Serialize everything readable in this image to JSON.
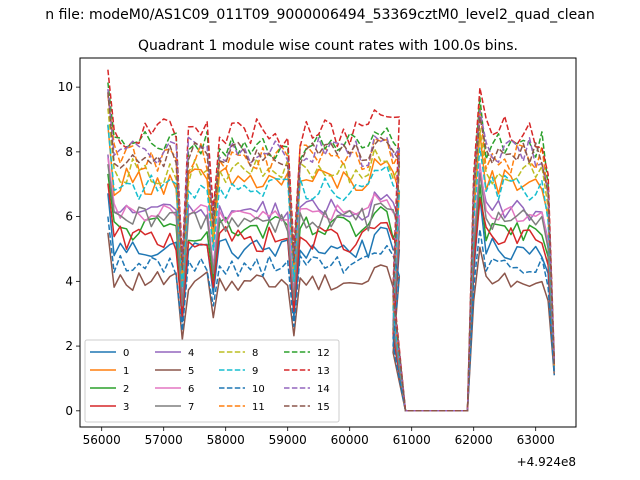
{
  "figure": {
    "suptitle": "n file: modeM0/AS1C09_011T09_9000006494_53369cztM0_level2_quad_clean",
    "offset_label": "+4.924e8"
  },
  "chart_data": {
    "type": "line",
    "title": "Quadrant 1 module wise count rates with 100.0s bins.",
    "xlabel": "",
    "ylabel": "",
    "x_offset": 492400000,
    "xlim": [
      55650,
      63650
    ],
    "ylim": [
      -0.5,
      10.9
    ],
    "xticks": [
      56000,
      57000,
      58000,
      59000,
      60000,
      61000,
      62000,
      63000
    ],
    "xtick_labels": [
      "56000",
      "57000",
      "58000",
      "59000",
      "60000",
      "61000",
      "62000",
      "63000"
    ],
    "yticks": [
      0,
      2,
      4,
      6,
      8,
      10
    ],
    "ytick_labels": [
      "0",
      "2",
      "4",
      "6",
      "8",
      "10"
    ],
    "grid": false,
    "legend_position": "lower-left",
    "legend_columns": 4,
    "segments": [
      {
        "start": 56100,
        "end": 60800,
        "step": 100
      },
      {
        "start": 60900,
        "end": 61900,
        "step": 100
      },
      {
        "start": 62000,
        "end": 63300,
        "step": 100
      }
    ],
    "series": [
      {
        "name": "0",
        "color": "#1f77b4",
        "dash": "solid",
        "base": 5.0,
        "amp": 0.35,
        "sector": 6,
        "tail": 1.2
      },
      {
        "name": "1",
        "color": "#ff7f0e",
        "dash": "solid",
        "base": 7.1,
        "amp": 0.45,
        "sector": 6,
        "tail": 1.4
      },
      {
        "name": "2",
        "color": "#2ca02c",
        "dash": "solid",
        "base": 5.6,
        "amp": 0.4,
        "sector": 6,
        "tail": 1.3
      },
      {
        "name": "3",
        "color": "#d62728",
        "dash": "solid",
        "base": 5.3,
        "amp": 0.4,
        "sector": 6,
        "tail": 1.2
      },
      {
        "name": "4",
        "color": "#9467bd",
        "dash": "solid",
        "base": 6.2,
        "amp": 0.35,
        "sector": 6,
        "tail": 1.4
      },
      {
        "name": "5",
        "color": "#8c564b",
        "dash": "solid",
        "base": 4.0,
        "amp": 0.3,
        "sector": 5,
        "tail": 1.1
      },
      {
        "name": "6",
        "color": "#e377c2",
        "dash": "solid",
        "base": 6.1,
        "amp": 0.3,
        "sector": 6,
        "tail": 1.3
      },
      {
        "name": "7",
        "color": "#7f7f7f",
        "dash": "solid",
        "base": 5.9,
        "amp": 0.4,
        "sector": 6,
        "tail": 1.2
      },
      {
        "name": "8",
        "color": "#bcbd22",
        "dash": "dashed",
        "base": 7.4,
        "amp": 0.4,
        "sector": 7,
        "tail": 1.4
      },
      {
        "name": "9",
        "color": "#17becf",
        "dash": "dashed",
        "base": 6.9,
        "amp": 0.4,
        "sector": 7,
        "tail": 1.3
      },
      {
        "name": "10",
        "color": "#1f77b4",
        "dash": "dashed",
        "base": 4.5,
        "amp": 0.35,
        "sector": 5,
        "tail": 1.1
      },
      {
        "name": "11",
        "color": "#ff7f0e",
        "dash": "dashed",
        "base": 7.8,
        "amp": 0.45,
        "sector": 7,
        "tail": 1.4
      },
      {
        "name": "12",
        "color": "#2ca02c",
        "dash": "dashed",
        "base": 8.2,
        "amp": 0.45,
        "sector": 7,
        "tail": 1.5
      },
      {
        "name": "13",
        "color": "#d62728",
        "dash": "dashed",
        "base": 8.6,
        "amp": 0.5,
        "sector": 7,
        "tail": 1.6
      },
      {
        "name": "14",
        "color": "#9467bd",
        "dash": "dashed",
        "base": 8.0,
        "amp": 0.45,
        "sector": 7,
        "tail": 1.5
      },
      {
        "name": "15",
        "color": "#8c564b",
        "dash": "dashed",
        "base": 7.9,
        "amp": 0.4,
        "sector": 7,
        "tail": 1.4
      }
    ]
  }
}
